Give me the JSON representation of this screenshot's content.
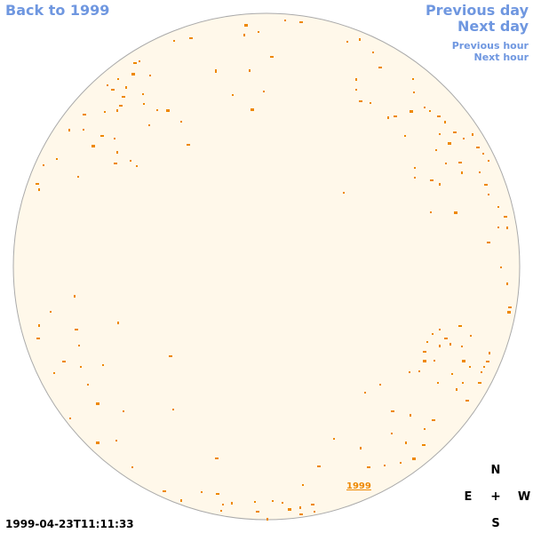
{
  "nav": {
    "back_label": "Back to 1999",
    "previous_day": "Previous day",
    "next_day": "Next day",
    "previous_hour": "Previous hour",
    "next_hour": "Next hour"
  },
  "sun_disk": {
    "fill_color": "#fff8ea",
    "border_color": "#aaaaaa",
    "mark_color": "#ee8800",
    "year_label": "1999"
  },
  "compass": {
    "north": "N",
    "east": "E",
    "center": "+",
    "west": "W",
    "south": "S"
  },
  "timestamp": "1999-04-23T11:11:33"
}
